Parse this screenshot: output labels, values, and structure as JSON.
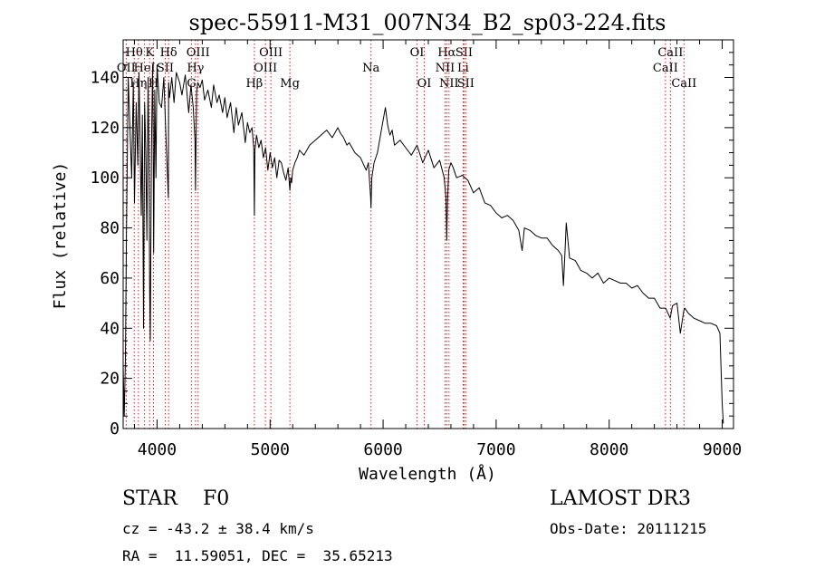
{
  "chart_data": {
    "type": "line",
    "title": "spec-55911-M31_007N34_B2_sp03-224.fits",
    "xlabel": "Wavelength (Å)",
    "ylabel": "Flux (relative)",
    "xlim": [
      3700,
      9100
    ],
    "ylim": [
      0,
      155
    ],
    "xticks": [
      4000,
      5000,
      6000,
      7000,
      8000,
      9000
    ],
    "yticks": [
      0,
      20,
      40,
      60,
      80,
      100,
      120,
      140
    ],
    "series": [
      {
        "name": "spectrum",
        "x": [
          3700,
          3710,
          3720,
          3730,
          3745,
          3760,
          3775,
          3790,
          3800,
          3815,
          3830,
          3840,
          3850,
          3860,
          3870,
          3880,
          3890,
          3900,
          3910,
          3920,
          3930,
          3935,
          3940,
          3950,
          3960,
          3965,
          3970,
          3980,
          3990,
          4000,
          4020,
          4040,
          4060,
          4080,
          4100,
          4102,
          4110,
          4130,
          4150,
          4170,
          4200,
          4220,
          4250,
          4280,
          4300,
          4320,
          4335,
          4340,
          4345,
          4350,
          4360,
          4380,
          4400,
          4420,
          4450,
          4480,
          4500,
          4530,
          4550,
          4580,
          4600,
          4620,
          4650,
          4680,
          4700,
          4720,
          4750,
          4780,
          4800,
          4820,
          4840,
          4855,
          4861,
          4866,
          4880,
          4900,
          4920,
          4940,
          4960,
          4980,
          5000,
          5020,
          5040,
          5060,
          5080,
          5100,
          5120,
          5140,
          5160,
          5175,
          5183,
          5190,
          5200,
          5220,
          5240,
          5260,
          5300,
          5350,
          5400,
          5450,
          5500,
          5550,
          5600,
          5620,
          5650,
          5680,
          5700,
          5750,
          5800,
          5850,
          5870,
          5890,
          5893,
          5900,
          5920,
          5950,
          6000,
          6020,
          6040,
          6060,
          6080,
          6100,
          6150,
          6200,
          6250,
          6300,
          6350,
          6400,
          6450,
          6500,
          6540,
          6556,
          6563,
          6570,
          6580,
          6600,
          6620,
          6650,
          6700,
          6750,
          6800,
          6850,
          6900,
          6950,
          7000,
          7050,
          7100,
          7150,
          7200,
          7230,
          7250,
          7300,
          7350,
          7400,
          7450,
          7500,
          7550,
          7580,
          7595,
          7610,
          7620,
          7650,
          7700,
          7750,
          7800,
          7850,
          7900,
          7950,
          8000,
          8050,
          8100,
          8150,
          8200,
          8250,
          8300,
          8350,
          8400,
          8450,
          8500,
          8540,
          8560,
          8600,
          8630,
          8660,
          8670,
          8700,
          8750,
          8800,
          8850,
          8900,
          8950,
          8980,
          9000,
          9010
        ],
        "y": [
          25,
          5,
          28,
          80,
          140,
          120,
          100,
          138,
          90,
          130,
          105,
          142,
          115,
          85,
          125,
          40,
          130,
          110,
          75,
          140,
          100,
          55,
          35,
          110,
          145,
          120,
          70,
          135,
          100,
          145,
          130,
          128,
          140,
          115,
          92,
          138,
          132,
          140,
          130,
          142,
          138,
          133,
          141,
          126,
          137,
          128,
          115,
          95,
          116,
          134,
          138,
          136,
          139,
          131,
          135,
          128,
          137,
          130,
          133,
          126,
          132,
          124,
          130,
          118,
          128,
          121,
          126,
          114,
          122,
          118,
          120,
          112,
          85,
          111,
          117,
          112,
          115,
          108,
          112,
          103,
          110,
          104,
          108,
          100,
          107,
          106,
          102,
          99,
          104,
          95,
          100,
          98,
          103,
          106,
          108,
          111,
          109,
          113,
          115,
          117,
          119,
          116,
          120,
          118,
          116,
          113,
          114,
          110,
          108,
          103,
          106,
          92,
          88,
          100,
          106,
          110,
          123,
          128,
          121,
          117,
          119,
          113,
          115,
          112,
          109,
          113,
          106,
          111,
          104,
          107,
          100,
          92,
          75,
          90,
          103,
          106,
          104,
          100,
          101,
          99,
          94,
          96,
          90,
          89,
          86,
          84,
          85,
          83,
          79,
          71,
          80,
          79,
          77,
          76,
          76,
          73,
          71,
          69,
          57,
          71,
          82,
          68,
          67,
          63,
          62,
          60,
          62,
          58,
          60,
          59,
          58,
          58,
          56,
          57,
          54,
          52,
          52,
          48,
          48,
          44,
          49,
          50,
          38,
          47,
          48,
          46,
          44,
          43,
          42,
          42,
          41,
          38,
          10,
          2
        ]
      }
    ],
    "line_markers": [
      {
        "label": "Hθ",
        "x": 3798,
        "row": 1
      },
      {
        "label": "OII",
        "x": 3727,
        "row": 2
      },
      {
        "label": "Hη",
        "x": 3835,
        "row": 3
      },
      {
        "label": "K",
        "x": 3934,
        "row": 1
      },
      {
        "label": "HeI",
        "x": 3889,
        "row": 2
      },
      {
        "label": "H",
        "x": 3968,
        "row": 3
      },
      {
        "label": "SII",
        "x": 4072,
        "row": 2
      },
      {
        "label": "Hδ",
        "x": 4102,
        "row": 1
      },
      {
        "label": "OIII",
        "x": 4363,
        "row": 1
      },
      {
        "label": "Hγ",
        "x": 4340,
        "row": 2
      },
      {
        "label": "G",
        "x": 4304,
        "row": 3
      },
      {
        "label": "Hβ",
        "x": 4861,
        "row": 3
      },
      {
        "label": "OIII",
        "x": 5007,
        "row": 1
      },
      {
        "label": "OIII",
        "x": 4959,
        "row": 2
      },
      {
        "label": "Mg",
        "x": 5175,
        "row": 3
      },
      {
        "label": "Na",
        "x": 5893,
        "row": 2
      },
      {
        "label": "OI",
        "x": 6300,
        "row": 1
      },
      {
        "label": "OI",
        "x": 6364,
        "row": 3
      },
      {
        "label": "Hα",
        "x": 6563,
        "row": 1
      },
      {
        "label": "NII",
        "x": 6548,
        "row": 2
      },
      {
        "label": "NII",
        "x": 6583,
        "row": 3
      },
      {
        "label": "SII",
        "x": 6716,
        "row": 1
      },
      {
        "label": "Li",
        "x": 6708,
        "row": 2
      },
      {
        "label": "SII",
        "x": 6731,
        "row": 3
      },
      {
        "label": "CaII",
        "x": 8542,
        "row": 1
      },
      {
        "label": "CaII",
        "x": 8498,
        "row": 2
      },
      {
        "label": "CaII",
        "x": 8662,
        "row": 3
      }
    ]
  },
  "info": {
    "classification": "STAR    F0",
    "redshift": "cz = -43.2 ± 38.4 km/s",
    "coords": "RA =  11.59051, DEC =  35.65213",
    "survey": "LAMOST DR3",
    "obs_date": "Obs-Date: 20111215"
  }
}
